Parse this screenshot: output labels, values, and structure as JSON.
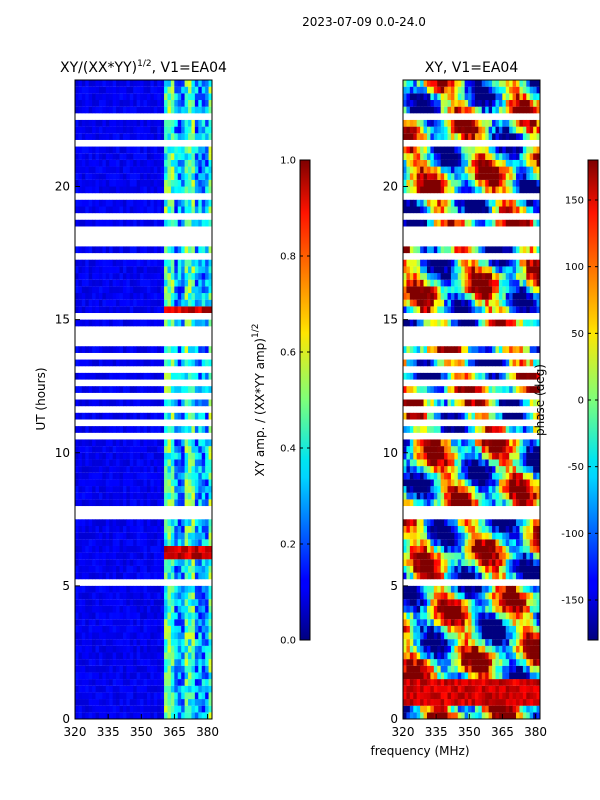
{
  "chart_data": [
    {
      "type": "heatmap",
      "suptitle": "2023-07-09 0.0-24.0",
      "title": "XY/(XX*YY)",
      "title_exponent": "1/2",
      "title_suffix": ", V1=EA04",
      "xlabel": "frequency (MHz)",
      "ylabel": "UT (hours)",
      "xlim": [
        320,
        382
      ],
      "ylim": [
        0,
        24
      ],
      "xticks": [
        "320",
        "335",
        "350",
        "365",
        "380"
      ],
      "yticks": [
        "0",
        "5",
        "10",
        "15",
        "20"
      ],
      "colormap": "jet",
      "colorbar": {
        "label": "XY amp. / (XX*YY amp)",
        "label_exponent": "1/2",
        "range": [
          0.0,
          1.0
        ],
        "ticks": [
          "0.0",
          "0.2",
          "0.4",
          "0.6",
          "0.8",
          "1.0"
        ]
      },
      "description_values": {
        "low_band_value": 0.08,
        "high_band_value_range": [
          0.3,
          0.6
        ],
        "high_band_start_mhz": 360,
        "hot_spots_ut": [
          6.3,
          15.3
        ]
      }
    },
    {
      "type": "heatmap",
      "title": "XY, V1=EA04",
      "xlim": [
        320,
        382
      ],
      "ylim": [
        0,
        24
      ],
      "xticks": [
        "320",
        "335",
        "350",
        "365",
        "380"
      ],
      "yticks": [
        "0",
        "5",
        "10",
        "15",
        "20"
      ],
      "colormap": "jet",
      "colorbar": {
        "label": "phase (deg)",
        "range": [
          -180,
          180
        ],
        "ticks": [
          "-150",
          "-100",
          "-50",
          "0",
          "50",
          "100",
          "150"
        ]
      }
    }
  ]
}
